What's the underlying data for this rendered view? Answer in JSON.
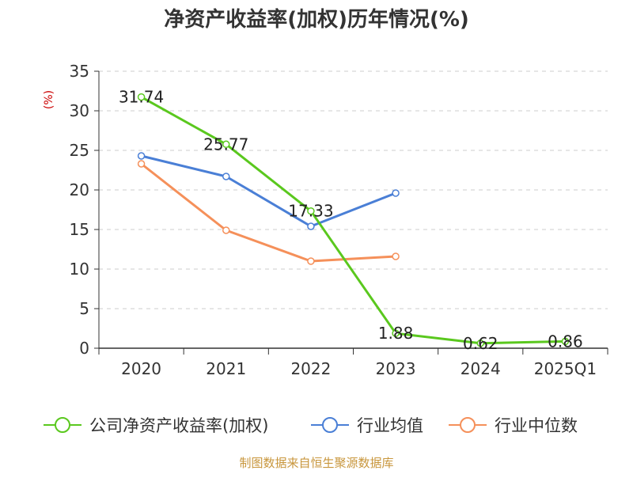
{
  "chart_data": {
    "type": "line",
    "title": "净资产收益率(加权)历年情况(%)",
    "ylabel": "(%)",
    "categories": [
      "2020",
      "2021",
      "2022",
      "2023",
      "2024",
      "2025Q1"
    ],
    "ylim": [
      0,
      35
    ],
    "yticks": [
      0,
      5,
      10,
      15,
      20,
      25,
      30,
      35
    ],
    "grid": true,
    "legend_position": "bottom",
    "series": [
      {
        "name": "公司净资产收益率(加权)",
        "color": "#5ac81e",
        "values": [
          31.74,
          25.77,
          17.33,
          1.88,
          0.62,
          0.86
        ],
        "labels": [
          "31.74",
          "25.77",
          "17.33",
          "1.88",
          "0.62",
          "0.86"
        ]
      },
      {
        "name": "行业均值",
        "color": "#4a7fd6",
        "values": [
          24.3,
          21.7,
          15.4,
          19.6,
          null,
          null
        ]
      },
      {
        "name": "行业中位数",
        "color": "#f5905a",
        "values": [
          23.3,
          14.9,
          11.0,
          11.6,
          null,
          null
        ]
      }
    ],
    "source": "制图数据来自恒生聚源数据库"
  }
}
